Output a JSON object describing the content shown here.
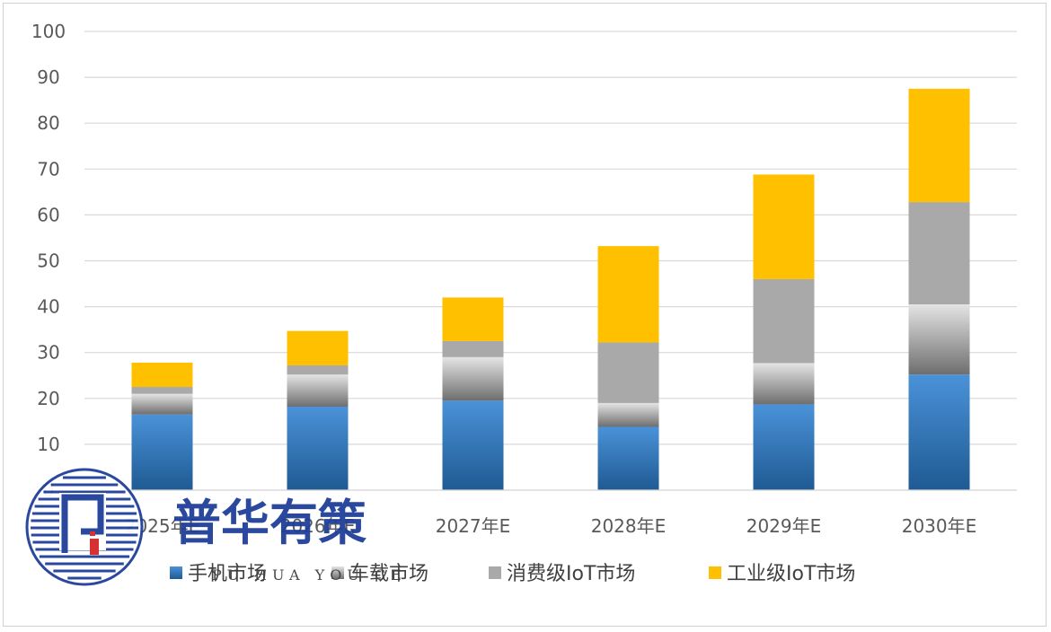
{
  "chart_data": {
    "type": "bar",
    "stacked": true,
    "title": "",
    "xlabel": "",
    "ylabel": "",
    "ylim": [
      0,
      100
    ],
    "yticks": [
      "0",
      "10",
      "20",
      "30",
      "40",
      "50",
      "60",
      "70",
      "80",
      "90",
      "100"
    ],
    "categories": [
      "2025年E",
      "2026年E",
      "2027年E",
      "2028年E",
      "2029年E",
      "2030年E"
    ],
    "series": [
      {
        "name": "手机市场",
        "color": "#3a7fc4",
        "values": [
          16.5,
          18.2,
          19.5,
          13.8,
          18.7,
          25.2
        ]
      },
      {
        "name": "车载市场",
        "color": "#a6a6a6",
        "values": [
          4.5,
          7.0,
          9.5,
          5.2,
          9.0,
          15.3
        ]
      },
      {
        "name": "消费级IoT市场",
        "color": "#a5a5a5",
        "values": [
          1.5,
          2.0,
          3.5,
          13.2,
          18.3,
          22.3
        ]
      },
      {
        "name": "工业级IoT市场",
        "color": "#ffc000",
        "values": [
          5.3,
          7.5,
          9.5,
          21.0,
          22.8,
          24.7
        ]
      }
    ],
    "grid": true,
    "legend_position": "bottom"
  },
  "watermark": {
    "brand_text": "普华有策",
    "romanized": "PU HUA YOU CE",
    "logo": "puhua-logo-circle"
  }
}
